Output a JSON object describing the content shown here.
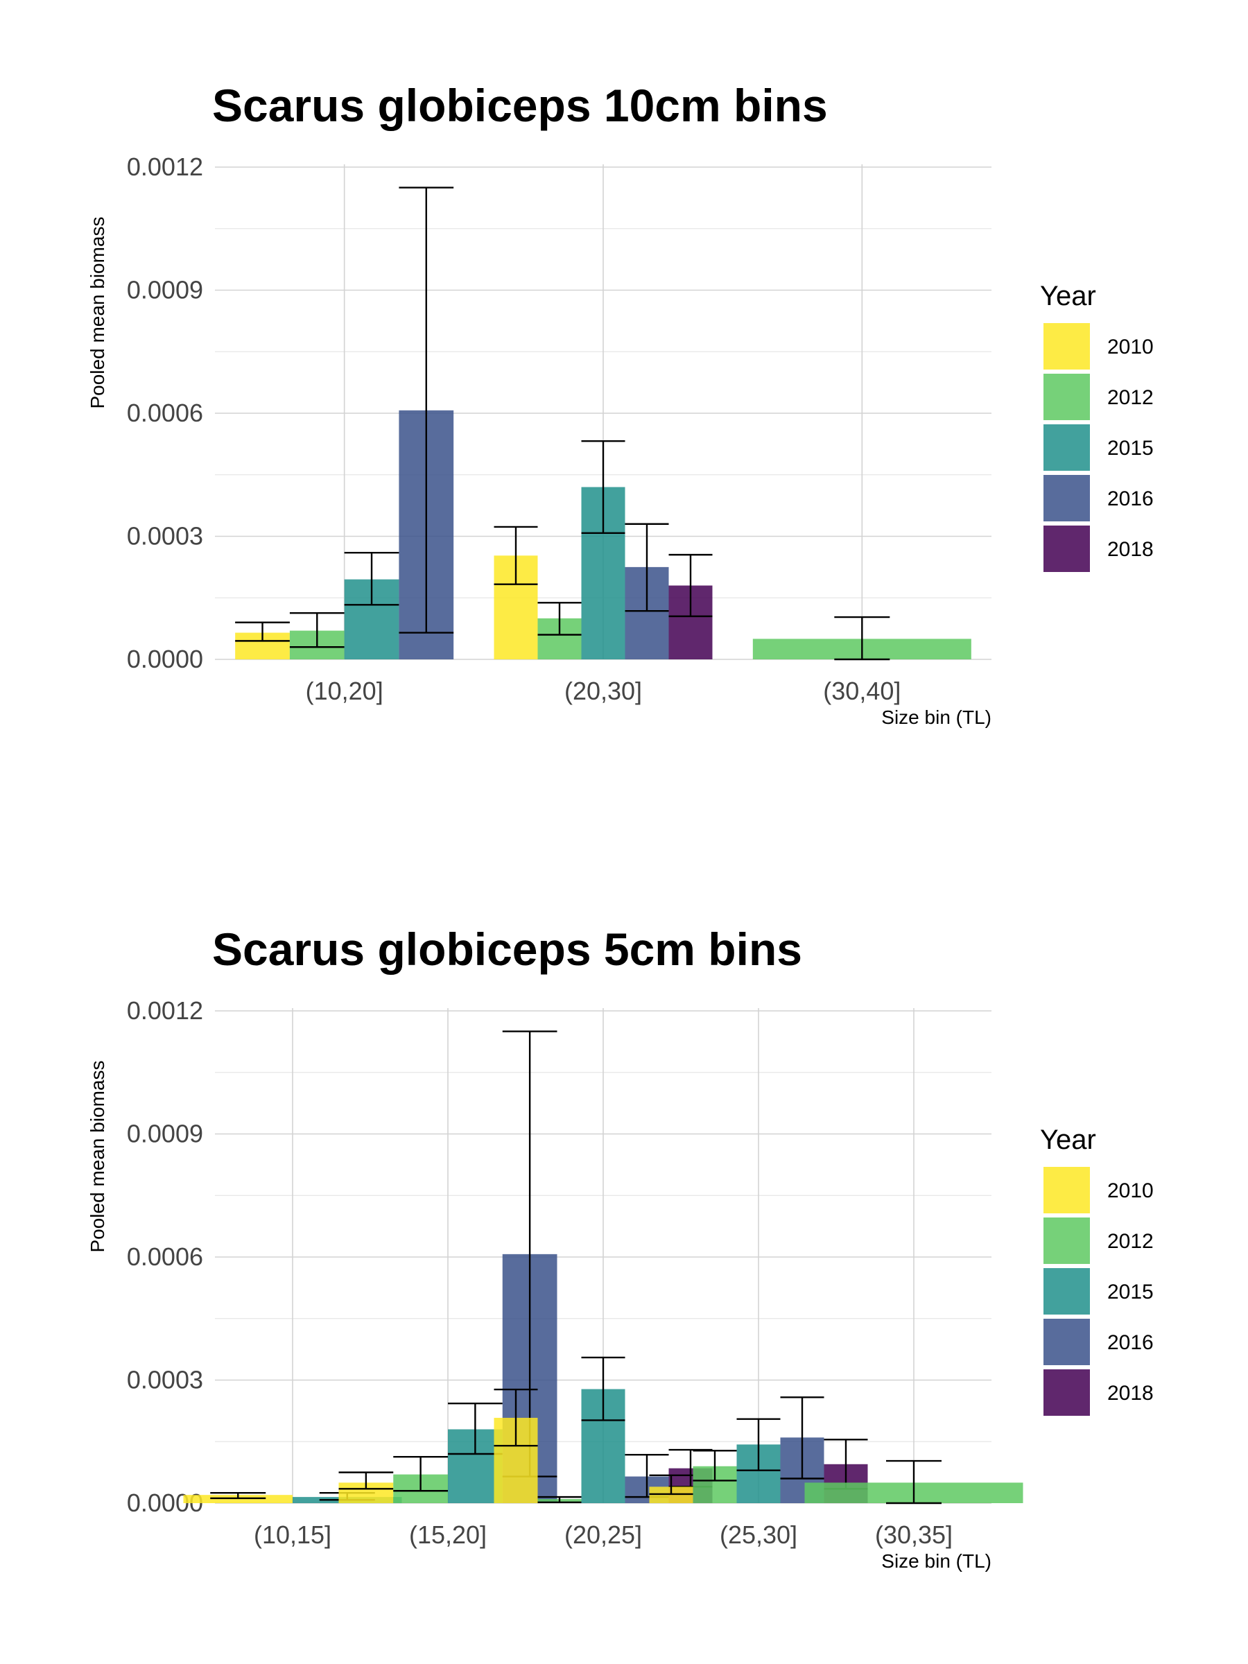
{
  "legend": {
    "title": "Year",
    "entries": [
      {
        "label": "2010",
        "color": "#FDE725"
      },
      {
        "label": "2012",
        "color": "#5EC962"
      },
      {
        "label": "2015",
        "color": "#21908C"
      },
      {
        "label": "2016",
        "color": "#3B528B"
      },
      {
        "label": "2018",
        "color": "#440154"
      }
    ]
  },
  "chart_data": [
    {
      "type": "bar",
      "title": "Scarus globiceps 10cm bins",
      "xlabel": "Size bin (TL)",
      "ylabel": "Pooled mean biomass",
      "ylim": [
        0,
        0.0012
      ],
      "yticks": [
        "0.0000",
        "0.0003",
        "0.0006",
        "0.0009",
        "0.0012"
      ],
      "grid": true,
      "legend_position": "right",
      "categories": [
        "(10,20]",
        "(20,30]",
        "(30,40]"
      ],
      "groups": [
        {
          "category": "(10,20]",
          "bars": [
            {
              "year": "2010",
              "value": 6.5e-05,
              "lower": 4.5e-05,
              "upper": 9e-05
            },
            {
              "year": "2012",
              "value": 7e-05,
              "lower": 3e-05,
              "upper": 0.000113
            },
            {
              "year": "2015",
              "value": 0.000195,
              "lower": 0.000133,
              "upper": 0.00026
            },
            {
              "year": "2016",
              "value": 0.000607,
              "lower": 6.5e-05,
              "upper": 0.00115
            }
          ]
        },
        {
          "category": "(20,30]",
          "bars": [
            {
              "year": "2010",
              "value": 0.000253,
              "lower": 0.000183,
              "upper": 0.000323
            },
            {
              "year": "2012",
              "value": 0.0001,
              "lower": 6e-05,
              "upper": 0.000138
            },
            {
              "year": "2015",
              "value": 0.00042,
              "lower": 0.000308,
              "upper": 0.000532
            },
            {
              "year": "2016",
              "value": 0.000225,
              "lower": 0.000118,
              "upper": 0.00033
            },
            {
              "year": "2018",
              "value": 0.00018,
              "lower": 0.000105,
              "upper": 0.000255
            }
          ]
        },
        {
          "category": "(30,40]",
          "bars": [
            {
              "year": "2012",
              "value": 5e-05,
              "lower": 0.0,
              "upper": 0.000103
            }
          ]
        }
      ]
    },
    {
      "type": "bar",
      "title": "Scarus globiceps 5cm bins",
      "xlabel": "Size bin (TL)",
      "ylabel": "Pooled mean biomass",
      "ylim": [
        0,
        0.0012
      ],
      "yticks": [
        "0.0000",
        "0.0003",
        "0.0006",
        "0.0009",
        "0.0012"
      ],
      "grid": true,
      "legend_position": "right",
      "categories": [
        "(10,15]",
        "(15,20]",
        "(20,25]",
        "(25,30]",
        "(30,35]"
      ],
      "groups": [
        {
          "category": "(10,15]",
          "bars": [
            {
              "year": "2010",
              "value": 2e-05,
              "lower": 1.2e-05,
              "upper": 2.5e-05
            },
            {
              "year": "2015",
              "value": 1.5e-05,
              "lower": 8e-06,
              "upper": 2.5e-05
            }
          ]
        },
        {
          "category": "(15,20]",
          "bars": [
            {
              "year": "2010",
              "value": 5e-05,
              "lower": 3.5e-05,
              "upper": 7.5e-05
            },
            {
              "year": "2012",
              "value": 7e-05,
              "lower": 3e-05,
              "upper": 0.000113
            },
            {
              "year": "2015",
              "value": 0.00018,
              "lower": 0.00012,
              "upper": 0.000243
            },
            {
              "year": "2016",
              "value": 0.000607,
              "lower": 6.5e-05,
              "upper": 0.00115
            }
          ]
        },
        {
          "category": "(20,25]",
          "bars": [
            {
              "year": "2010",
              "value": 0.000208,
              "lower": 0.00014,
              "upper": 0.000277
            },
            {
              "year": "2012",
              "value": 1e-05,
              "lower": 2e-06,
              "upper": 1.5e-05
            },
            {
              "year": "2015",
              "value": 0.000278,
              "lower": 0.000202,
              "upper": 0.000355
            },
            {
              "year": "2016",
              "value": 6.5e-05,
              "lower": 1.5e-05,
              "upper": 0.000118
            },
            {
              "year": "2018",
              "value": 8.5e-05,
              "lower": 4e-05,
              "upper": 0.00013
            }
          ]
        },
        {
          "category": "(25,30]",
          "bars": [
            {
              "year": "2010",
              "value": 4e-05,
              "lower": 2.2e-05,
              "upper": 6.8e-05
            },
            {
              "year": "2012",
              "value": 9e-05,
              "lower": 5.5e-05,
              "upper": 0.000128
            },
            {
              "year": "2015",
              "value": 0.000143,
              "lower": 8e-05,
              "upper": 0.000205
            },
            {
              "year": "2016",
              "value": 0.00016,
              "lower": 6e-05,
              "upper": 0.000258
            },
            {
              "year": "2018",
              "value": 9.5e-05,
              "lower": 3.5e-05,
              "upper": 0.000155
            }
          ]
        },
        {
          "category": "(30,35]",
          "bars": [
            {
              "year": "2012",
              "value": 5e-05,
              "lower": 0.0,
              "upper": 0.000103
            }
          ]
        }
      ]
    }
  ]
}
